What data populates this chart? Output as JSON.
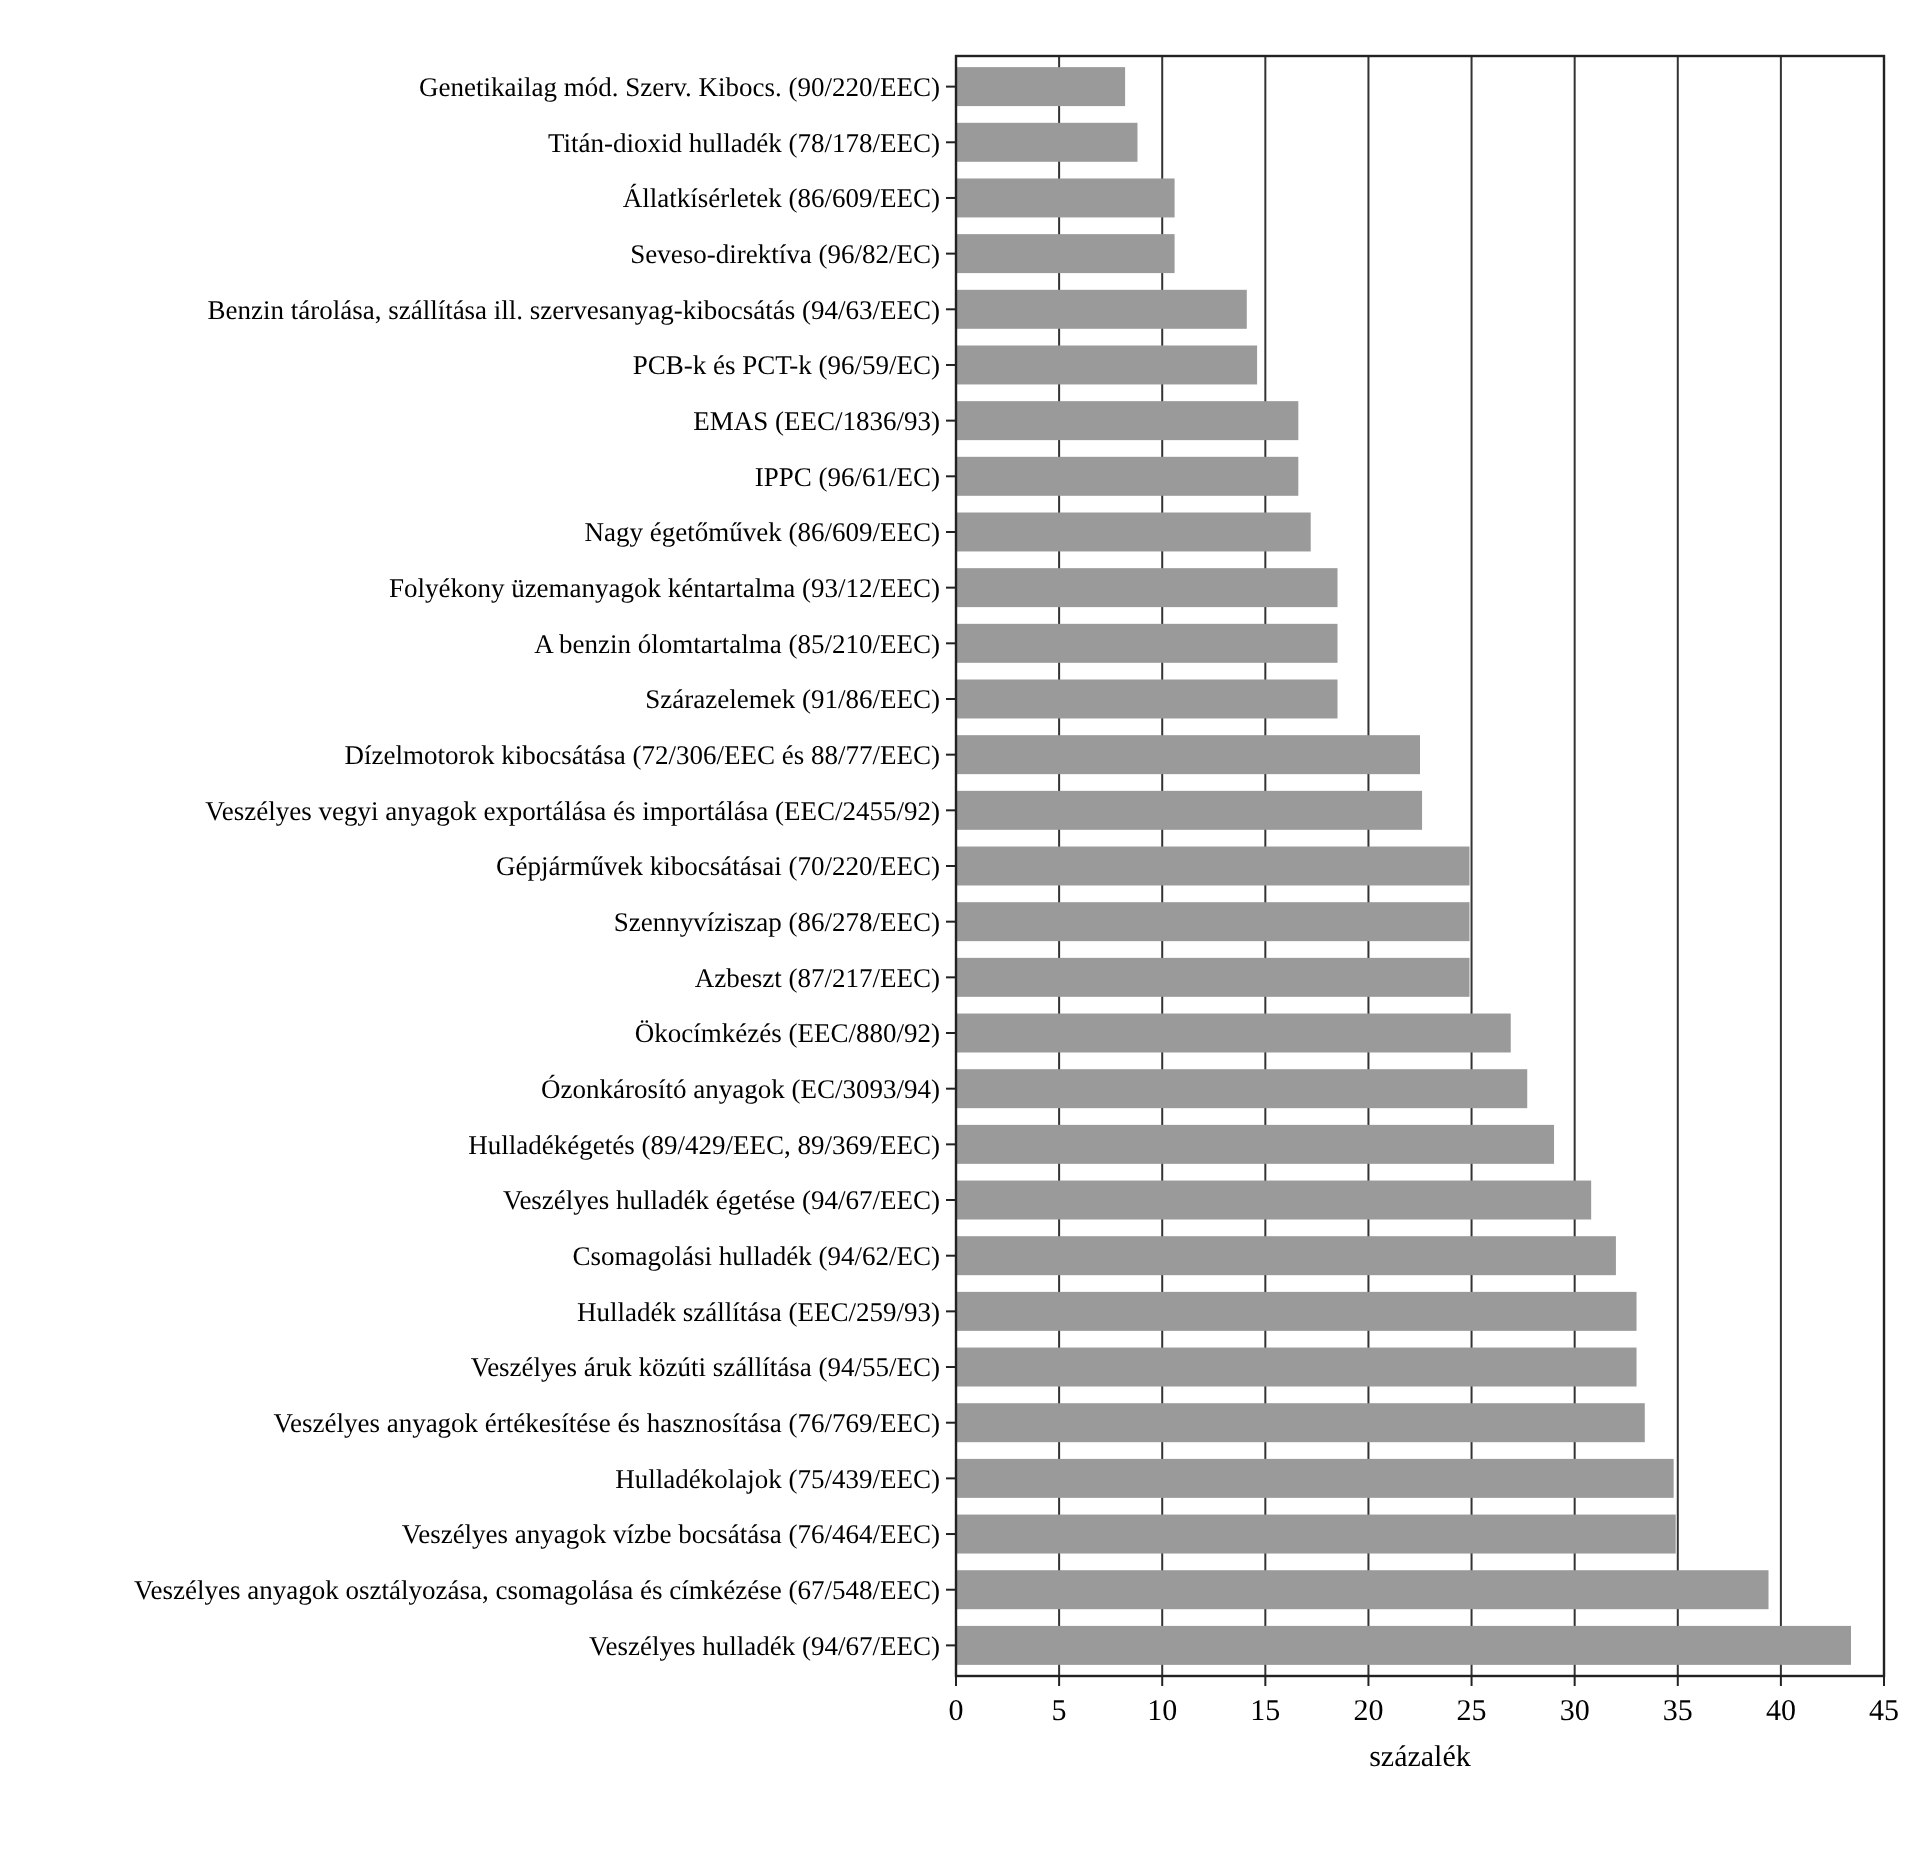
{
  "chart_data": {
    "type": "bar",
    "orientation": "horizontal",
    "xlabel": "százalék",
    "categories": [
      "Genetikailag mód. Szerv. Kibocs. (90/220/EEC)",
      "Titán-dioxid hulladék (78/178/EEC)",
      "Állatkísérletek (86/609/EEC)",
      "Seveso-direktíva (96/82/EC)",
      "Benzin tárolása, szállítása ill. szervesanyag-kibocsátás (94/63/EEC)",
      "PCB-k és PCT-k (96/59/EC)",
      "EMAS (EEC/1836/93)",
      "IPPC (96/61/EC)",
      "Nagy égetőművek (86/609/EEC)",
      "Folyékony üzemanyagok kéntartalma (93/12/EEC)",
      "A benzin ólomtartalma (85/210/EEC)",
      "Szárazelemek (91/86/EEC)",
      "Dízelmotorok kibocsátása (72/306/EEC és 88/77/EEC)",
      "Veszélyes vegyi anyagok exportálása és importálása (EEC/2455/92)",
      "Gépjárművek kibocsátásai (70/220/EEC)",
      "Szennyvíziszap (86/278/EEC)",
      "Azbeszt (87/217/EEC)",
      "Ökocímkézés (EEC/880/92)",
      "Ózonkárosító anyagok (EC/3093/94)",
      "Hulladékégetés (89/429/EEC, 89/369/EEC)",
      "Veszélyes hulladék égetése (94/67/EEC)",
      "Csomagolási hulladék (94/62/EC)",
      "Hulladék szállítása (EEC/259/93)",
      "Veszélyes áruk közúti szállítása (94/55/EC)",
      "Veszélyes anyagok értékesítése és hasznosítása (76/769/EEC)",
      "Hulladékolajok (75/439/EEC)",
      "Veszélyes anyagok vízbe bocsátása (76/464/EEC)",
      "Veszélyes anyagok osztályozása, csomagolása és címkézése (67/548/EEC)",
      "Veszélyes hulladék (94/67/EEC)"
    ],
    "values": [
      8.2,
      8.8,
      10.6,
      10.6,
      14.1,
      14.6,
      16.6,
      16.6,
      17.2,
      18.5,
      18.5,
      18.5,
      22.5,
      22.6,
      24.9,
      24.9,
      24.9,
      26.9,
      27.7,
      29,
      30.8,
      32,
      33,
      33,
      33.4,
      34.8,
      34.9,
      39.4,
      43.4
    ],
    "color": "#9a9a9a",
    "xlim": [
      0,
      45
    ],
    "xticks": [
      0,
      5,
      10,
      15,
      20,
      25,
      30,
      35,
      40,
      45
    ],
    "grid": "x"
  }
}
